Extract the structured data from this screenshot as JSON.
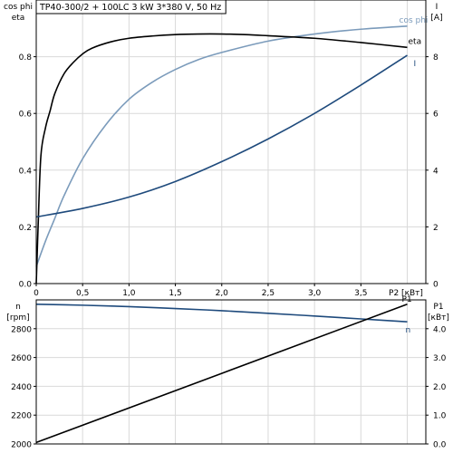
{
  "chart_data": [
    {
      "type": "line",
      "title": "TP40-300/2 + 100LC   3 kW   3*380 V, 50 Hz",
      "x_axis": {
        "label": "P2 [кВт]",
        "range": [
          0,
          4.2
        ],
        "ticks": [
          0,
          0.5,
          1.0,
          1.5,
          2.0,
          2.5,
          3.0,
          3.5
        ],
        "tick_labels": [
          "0",
          "0,5",
          "1,0",
          "1,5",
          "2,0",
          "2,5",
          "3,0",
          "3,5"
        ]
      },
      "y_left": {
        "label_line1": "cos phi",
        "label_line2": "eta",
        "range": [
          0,
          1.0
        ],
        "ticks": [
          0,
          0.2,
          0.4,
          0.6,
          0.8
        ],
        "tick_labels": [
          "0.0",
          "0.2",
          "0.4",
          "0.6",
          "0.8"
        ]
      },
      "y_right": {
        "label_line1": "I",
        "label_line2": "[A]",
        "range": [
          0,
          10
        ],
        "ticks": [
          0,
          2,
          4,
          6,
          8
        ],
        "tick_labels": [
          "0",
          "2",
          "4",
          "6",
          "8"
        ]
      },
      "grid": true,
      "series": [
        {
          "name": "cos phi",
          "axis": "left",
          "color": "#7b9bbb",
          "x": [
            0.0,
            0.1,
            0.2,
            0.3,
            0.5,
            0.75,
            1.0,
            1.25,
            1.5,
            1.75,
            2.0,
            2.5,
            3.0,
            3.5,
            4.0
          ],
          "y": [
            0.06,
            0.15,
            0.23,
            0.31,
            0.44,
            0.56,
            0.65,
            0.71,
            0.755,
            0.79,
            0.815,
            0.855,
            0.88,
            0.897,
            0.908
          ]
        },
        {
          "name": "eta",
          "axis": "left",
          "color": "#000000",
          "x": [
            0.0,
            0.02,
            0.05,
            0.1,
            0.15,
            0.2,
            0.3,
            0.4,
            0.5,
            0.6,
            0.8,
            1.0,
            1.25,
            1.5,
            1.75,
            2.0,
            2.25,
            2.5,
            3.0,
            3.5,
            4.0
          ],
          "y": [
            0.0,
            0.2,
            0.45,
            0.55,
            0.61,
            0.67,
            0.74,
            0.78,
            0.81,
            0.83,
            0.852,
            0.865,
            0.873,
            0.878,
            0.88,
            0.88,
            0.878,
            0.874,
            0.865,
            0.85,
            0.833
          ]
        },
        {
          "name": "I",
          "axis": "right",
          "color": "#1e4a7c",
          "x": [
            0.0,
            0.5,
            1.0,
            1.5,
            2.0,
            2.5,
            3.0,
            3.5,
            4.0
          ],
          "y": [
            2.35,
            2.65,
            3.05,
            3.6,
            4.3,
            5.1,
            6.0,
            7.0,
            8.05
          ]
        }
      ]
    },
    {
      "type": "line",
      "x_axis": {
        "range": [
          0,
          4.2
        ]
      },
      "y_left": {
        "label_line1": "n",
        "label_line2": "[rpm]",
        "range": [
          2000,
          3000
        ],
        "ticks": [
          2000,
          2200,
          2400,
          2600,
          2800
        ],
        "tick_labels": [
          "2000",
          "2200",
          "2400",
          "2600",
          "2800"
        ]
      },
      "y_right": {
        "label_line1": "P1",
        "label_line2": "[кВт]",
        "range": [
          0,
          5.0
        ],
        "ticks": [
          0,
          1.0,
          2.0,
          3.0,
          4.0
        ],
        "tick_labels": [
          "0.0",
          "1.0",
          "2.0",
          "3.0",
          "4.0"
        ]
      },
      "grid": true,
      "series": [
        {
          "name": "n",
          "axis": "left",
          "color": "#1e4a7c",
          "x": [
            0.0,
            0.5,
            1.0,
            1.5,
            2.0,
            2.5,
            3.0,
            3.5,
            4.0
          ],
          "y": [
            2970,
            2963,
            2953,
            2940,
            2925,
            2907,
            2888,
            2868,
            2848
          ]
        },
        {
          "name": "P1",
          "axis": "right",
          "color": "#000000",
          "x": [
            0.0,
            4.0
          ],
          "y": [
            0.05,
            4.85
          ]
        }
      ]
    }
  ]
}
